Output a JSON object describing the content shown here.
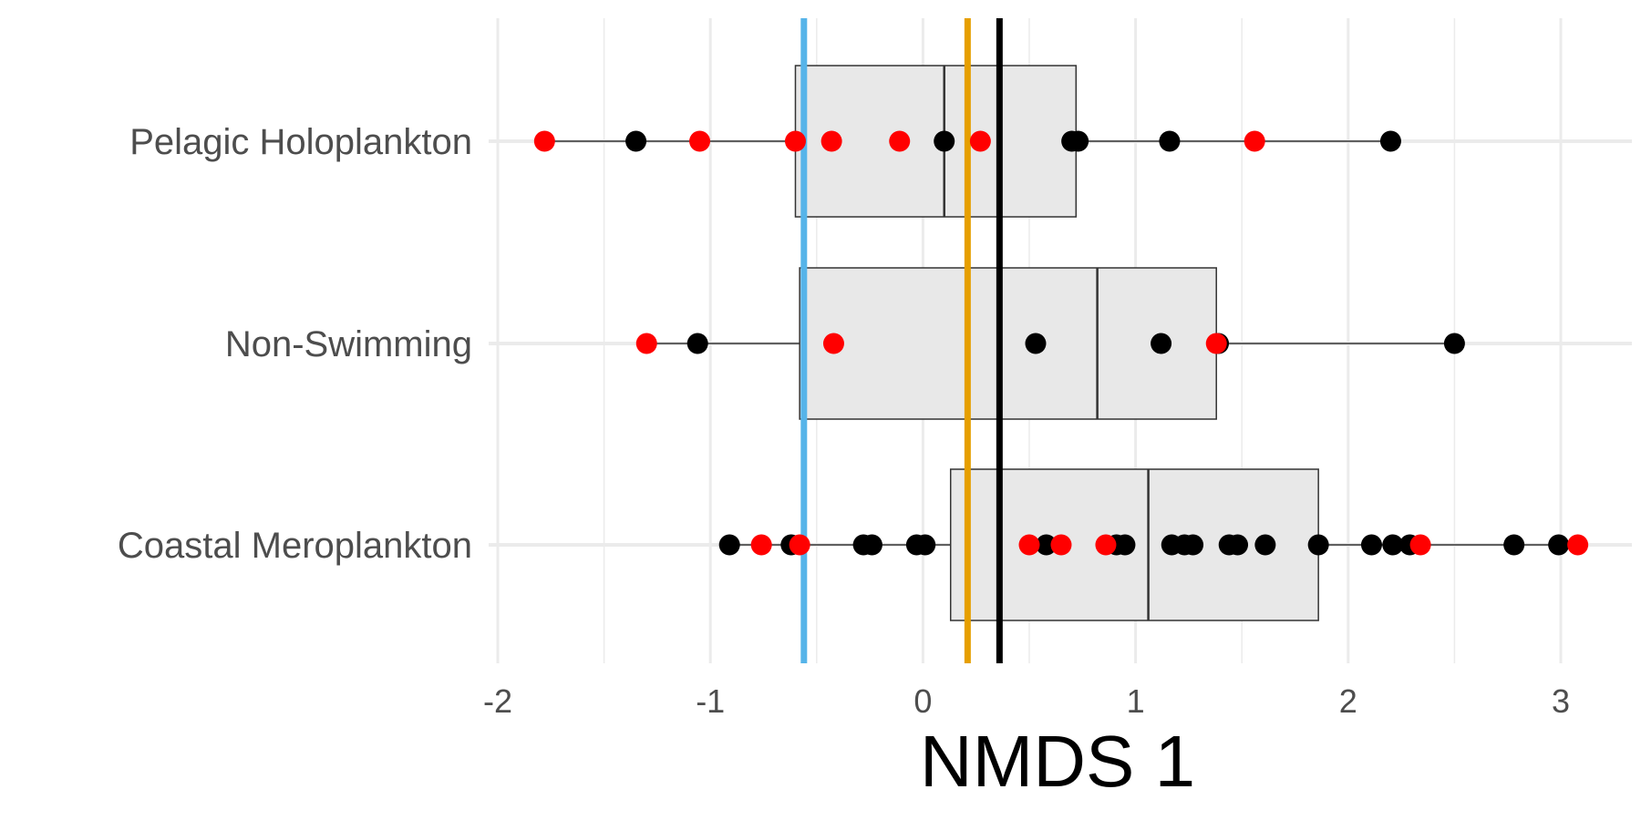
{
  "chart_data": {
    "type": "box",
    "title": "",
    "xlabel": "NMDS 1",
    "ylabel": "",
    "xlim": [
      -2.2,
      3.35
    ],
    "x_ticks": [
      "-2",
      "-1",
      "0",
      "1",
      "2",
      "3"
    ],
    "x_tick_values": [
      -2,
      -1,
      0,
      1,
      2,
      3
    ],
    "grid": true,
    "legend": "none",
    "colors": {
      "box_fill": "#e8e8e8",
      "box_stroke": "#333333",
      "grid": "#ebebeb",
      "point_black": "#000000",
      "point_red": "#ff0000",
      "ref_blue": "#56b4e9",
      "ref_orange": "#e69f00",
      "ref_black": "#000000"
    },
    "reference_lines": [
      {
        "color": "blue",
        "x": -0.56
      },
      {
        "color": "orange",
        "x": 0.21
      },
      {
        "color": "black",
        "x": 0.36
      }
    ],
    "categories": [
      "Pelagic Holoplankton",
      "Non-Swimming",
      "Coastal Meroplankton"
    ],
    "groups": [
      {
        "category": "Pelagic Holoplankton",
        "box": {
          "whisker_low": -1.78,
          "q1": -0.6,
          "median": 0.1,
          "q3": 0.72,
          "whisker_high": 2.2
        },
        "points": [
          {
            "x": -1.78,
            "c": "red"
          },
          {
            "x": -1.35,
            "c": "black"
          },
          {
            "x": -1.05,
            "c": "red"
          },
          {
            "x": -0.6,
            "c": "red"
          },
          {
            "x": -0.43,
            "c": "red"
          },
          {
            "x": -0.11,
            "c": "red"
          },
          {
            "x": 0.1,
            "c": "black"
          },
          {
            "x": 0.27,
            "c": "red"
          },
          {
            "x": 0.7,
            "c": "black"
          },
          {
            "x": 0.73,
            "c": "black"
          },
          {
            "x": 1.16,
            "c": "black"
          },
          {
            "x": 1.56,
            "c": "red"
          },
          {
            "x": 2.2,
            "c": "black"
          }
        ]
      },
      {
        "category": "Non-Swimming",
        "box": {
          "whisker_low": -1.3,
          "q1": -0.58,
          "median": 0.82,
          "q3": 1.38,
          "whisker_high": 2.5
        },
        "points": [
          {
            "x": -1.3,
            "c": "red"
          },
          {
            "x": -1.06,
            "c": "black"
          },
          {
            "x": -0.42,
            "c": "red"
          },
          {
            "x": 0.53,
            "c": "black"
          },
          {
            "x": 1.12,
            "c": "black"
          },
          {
            "x": 1.39,
            "c": "black"
          },
          {
            "x": 1.38,
            "c": "red"
          },
          {
            "x": 2.5,
            "c": "black"
          }
        ]
      },
      {
        "category": "Coastal Meroplankton",
        "box": {
          "whisker_low": -0.91,
          "q1": 0.13,
          "median": 1.06,
          "q3": 1.86,
          "whisker_high": 3.08
        },
        "points": [
          {
            "x": -0.91,
            "c": "black"
          },
          {
            "x": -0.76,
            "c": "red"
          },
          {
            "x": -0.62,
            "c": "black"
          },
          {
            "x": -0.58,
            "c": "red"
          },
          {
            "x": -0.28,
            "c": "black"
          },
          {
            "x": -0.24,
            "c": "black"
          },
          {
            "x": -0.03,
            "c": "black"
          },
          {
            "x": 0.01,
            "c": "black"
          },
          {
            "x": 0.58,
            "c": "black"
          },
          {
            "x": 0.5,
            "c": "red"
          },
          {
            "x": 0.65,
            "c": "red"
          },
          {
            "x": 0.91,
            "c": "black"
          },
          {
            "x": 0.95,
            "c": "black"
          },
          {
            "x": 0.86,
            "c": "red"
          },
          {
            "x": 1.17,
            "c": "black"
          },
          {
            "x": 1.23,
            "c": "black"
          },
          {
            "x": 1.27,
            "c": "black"
          },
          {
            "x": 1.44,
            "c": "black"
          },
          {
            "x": 1.48,
            "c": "black"
          },
          {
            "x": 1.61,
            "c": "black"
          },
          {
            "x": 1.86,
            "c": "black"
          },
          {
            "x": 2.11,
            "c": "black"
          },
          {
            "x": 2.21,
            "c": "black"
          },
          {
            "x": 2.29,
            "c": "black"
          },
          {
            "x": 2.34,
            "c": "red"
          },
          {
            "x": 2.78,
            "c": "black"
          },
          {
            "x": 2.99,
            "c": "black"
          },
          {
            "x": 3.08,
            "c": "red"
          }
        ]
      }
    ]
  }
}
